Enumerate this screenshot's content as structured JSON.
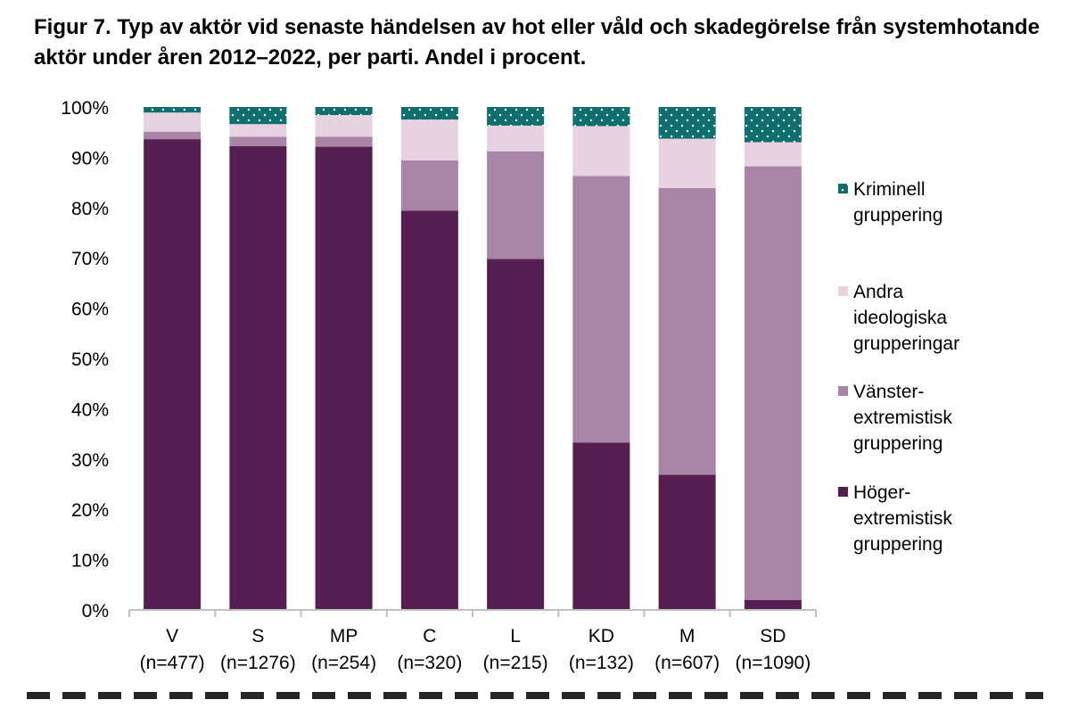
{
  "title": "Figur 7. Typ av aktör vid senaste händelsen av hot eller våld och skadegörelse från systemhotande aktör under åren 2012–2022, per parti. Andel i procent.",
  "chart_data": {
    "type": "bar",
    "stacked": true,
    "title": "Figur 7. Typ av aktör vid senaste händelsen av hot eller våld och skadegörelse från systemhotande aktör under åren 2012–2022, per parti. Andel i procent.",
    "categories": [
      "V",
      "S",
      "MP",
      "C",
      "L",
      "KD",
      "M",
      "SD"
    ],
    "category_sublabels": [
      "(n=477)",
      "(n=1276)",
      "(n=254)",
      "(n=320)",
      "(n=215)",
      "(n=132)",
      "(n=607)",
      "(n=1090)"
    ],
    "ylim": [
      0,
      100
    ],
    "yticks": [
      "0%",
      "10%",
      "20%",
      "30%",
      "40%",
      "50%",
      "60%",
      "70%",
      "80%",
      "90%",
      "100%"
    ],
    "legend_position": "right",
    "grid": false,
    "series": [
      {
        "name": "Höger-extremistisk gruppering",
        "legend_lines": [
          "Höger-",
          "extremistisk",
          "gruppering"
        ],
        "color": "#561f52",
        "values": [
          93.6,
          92.2,
          92.1,
          79.4,
          69.8,
          33.3,
          26.9,
          2.0
        ]
      },
      {
        "name": "Vänster-extremistisk gruppering",
        "legend_lines": [
          "Vänster-",
          "extremistisk",
          "gruppering"
        ],
        "color": "#a884a6",
        "values": [
          1.5,
          1.9,
          2.0,
          10.0,
          21.4,
          53.0,
          57.0,
          86.2
        ]
      },
      {
        "name": "Andra ideologiska grupperingar",
        "legend_lines": [
          "Andra",
          "ideologiska",
          "grupperingar"
        ],
        "color": "#e6d2e0",
        "values": [
          3.8,
          2.5,
          4.3,
          8.1,
          5.1,
          9.9,
          9.8,
          4.8
        ]
      },
      {
        "name": "Kriminell gruppering",
        "legend_lines": [
          "Kriminell",
          "gruppering"
        ],
        "color": "#0f6e6e",
        "pattern": "dots",
        "values": [
          1.1,
          3.4,
          1.6,
          2.5,
          3.7,
          3.8,
          6.3,
          7.0
        ]
      }
    ],
    "legend_order": [
      3,
      2,
      1,
      0
    ]
  }
}
